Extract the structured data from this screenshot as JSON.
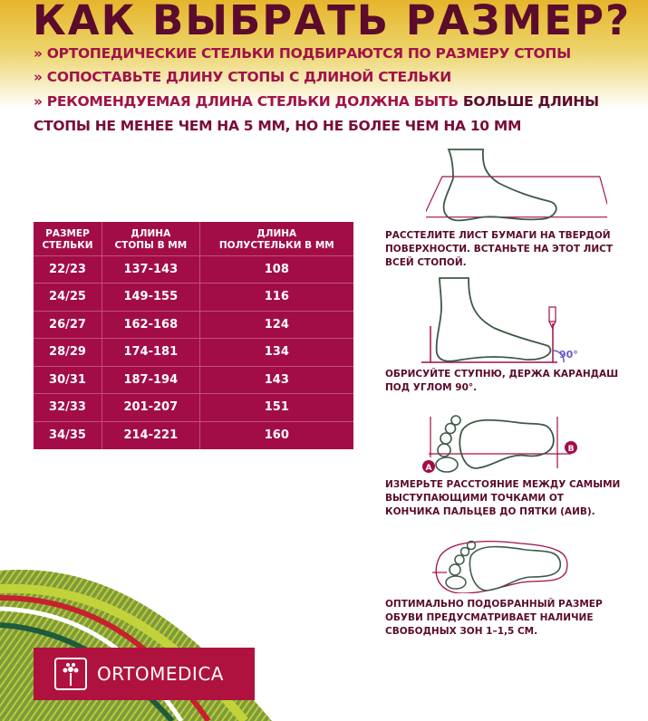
{
  "header": {
    "title": "КАК ВЫБРАТЬ РАЗМЕР?",
    "bullets": [
      "» ОРТОПЕДИЧЕСКИЕ СТЕЛЬКИ ПОДБИРАЮТСЯ ПО РАЗМЕРУ СТОПЫ",
      "» СОПОСТАВЬТЕ ДЛИНУ СТОПЫ С ДЛИНОЙ СТЕЛЬКИ",
      "» РЕКОМЕНДУЕМАЯ ДЛИНА СТЕЛЬКИ ДОЛЖНА БЫТЬ "
    ],
    "bullet3_bold": "БОЛЬШЕ ДЛИНЫ",
    "bullet4_bold": "СТОПЫ НЕ МЕНЕЕ ЧЕМ НА 5 ММ, НО НЕ БОЛЕЕ ЧЕМ НА 10 ММ"
  },
  "table": {
    "headers": [
      [
        "РАЗМЕР",
        "СТЕЛЬКИ"
      ],
      [
        "ДЛИНА",
        "СТОПЫ В ММ"
      ],
      [
        "ДЛИНА",
        "ПОЛУСТЕЛЬКИ В ММ"
      ]
    ],
    "rows": [
      [
        "22/23",
        "137-143",
        "108"
      ],
      [
        "24/25",
        "149-155",
        "116"
      ],
      [
        "26/27",
        "162-168",
        "124"
      ],
      [
        "28/29",
        "174-181",
        "134"
      ],
      [
        "30/31",
        "187-194",
        "143"
      ],
      [
        "32/33",
        "201-207",
        "151"
      ],
      [
        "34/35",
        "214-221",
        "160"
      ]
    ]
  },
  "steps": [
    {
      "lines": [
        "РАССТЕЛИТЕ ЛИСТ БУМАГИ НА ТВЕРДОЙ",
        "ПОВЕРХНОСТИ. ВСТАНЬТЕ НА ЭТОТ ЛИСТ",
        "ВСЕЙ СТОПОЙ."
      ]
    },
    {
      "lines": [
        "ОБРИСУЙТЕ СТУПНЮ, ДЕРЖА КАРАНДАШ",
        "ПОД УГЛОМ 90°."
      ],
      "angle_label": "90°"
    },
    {
      "lines": [
        "ИЗМЕРЬТЕ РАССТОЯНИЕ МЕЖДУ САМЫМИ",
        "ВЫСТУПАЮЩИМИ ТОЧКАМИ ОТ",
        "КОНЧИКА ПАЛЬЦЕВ ДО ПЯТКИ (АИВ)."
      ],
      "point_a": "A",
      "point_b": "B"
    },
    {
      "lines": [
        "ОПТИМАЛЬНО ПОДОБРАННЫЙ РАЗМЕР",
        "ОБУВИ ПРЕДУСМАТРИВАЕТ НАЛИЧИЕ",
        "СВОБОДНЫХ ЗОН 1–1,5 СМ."
      ]
    }
  ],
  "brand": {
    "name": "ORTOMEDICA"
  },
  "colors": {
    "title": "#5b0b2c",
    "accent": "#a30d47",
    "logo_bg": "#b0123f",
    "outline": "#3d5a45"
  }
}
